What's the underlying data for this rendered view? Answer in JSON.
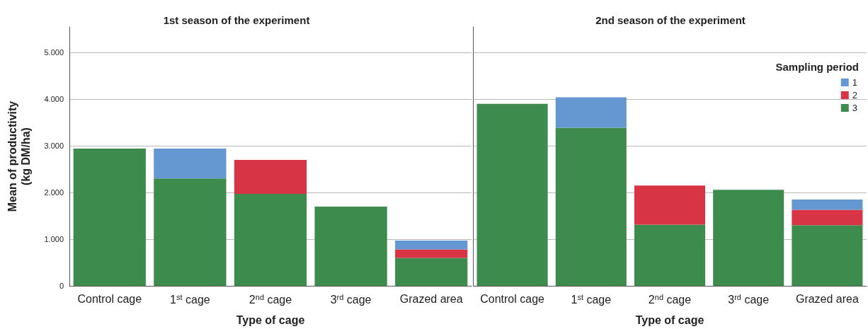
{
  "chart_data": [
    {
      "type": "bar",
      "title": "1st season of the experiment",
      "xlabel": "Type of cage",
      "ylabel": "Mean of productivity\n(kg DM/ha)",
      "categories": [
        "Control cage",
        "1$^{st}$ cage",
        "2$^{nd}$ cage",
        "3$^{rd}$ cage",
        "Grazed area"
      ],
      "stacked": true,
      "series": [
        {
          "color": "#3e8b4e",
          "values": [
            2940,
            2300,
            1970,
            1700,
            600
          ]
        },
        {
          "color": "#d73545",
          "values": [
            null,
            null,
            730,
            null,
            180
          ]
        },
        {
          "color": "#6598d0",
          "values": [
            null,
            640,
            null,
            null,
            190
          ]
        }
      ],
      "ylim": [
        0,
        5550
      ],
      "yticks": [
        0,
        {
          "value": 1000,
          "label": "1.000"
        },
        {
          "value": 2000,
          "label": "2.000"
        },
        {
          "value": 3000,
          "label": "3.000"
        },
        {
          "value": 4000,
          "label": "4.000"
        },
        {
          "value": 5000,
          "label": "5.000"
        }
      ],
      "grid": "y",
      "legend": false
    },
    {
      "type": "bar",
      "title": "2nd season of the experiment",
      "xlabel": "Type of cage",
      "categories": [
        "Control cage",
        "1$^{st}$ cage",
        "2$^{nd}$ cage",
        "3$^{rd}$ cage",
        "Grazed area"
      ],
      "stacked": true,
      "series": [
        {
          "name": "3",
          "color": "#3e8b4e",
          "values": [
            3900,
            3390,
            1310,
            2060,
            1300
          ]
        },
        {
          "name": "2",
          "color": "#d73545",
          "values": [
            null,
            null,
            840,
            null,
            330
          ]
        },
        {
          "name": "1",
          "color": "#6598d0",
          "values": [
            null,
            650,
            null,
            null,
            220
          ]
        }
      ],
      "ylim": [
        0,
        5550
      ],
      "yticks": [
        {
          "value": 0,
          "label": null
        },
        {
          "value": 1000,
          "label": null
        },
        {
          "value": 2000,
          "label": null
        },
        {
          "value": 3000,
          "label": null
        },
        {
          "value": 4000,
          "label": null
        },
        {
          "value": 5000,
          "label": null
        }
      ],
      "grid": "y",
      "legend": "top right",
      "legend_title": "Sampling period",
      "tick_labels": "x"
    }
  ]
}
